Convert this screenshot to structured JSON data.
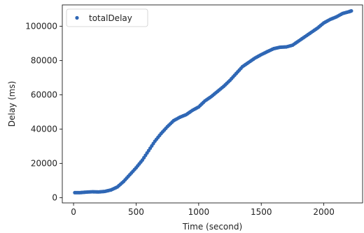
{
  "chart_data": {
    "type": "scatter",
    "title": "",
    "xlabel": "Time (second)",
    "ylabel": "Delay (ms)",
    "xlim": [
      -90,
      2310
    ],
    "ylim": [
      -3000,
      112500
    ],
    "xticks": [
      0,
      500,
      1000,
      1500,
      2000
    ],
    "yticks": [
      0,
      20000,
      40000,
      60000,
      80000,
      100000
    ],
    "grid": false,
    "legend_position": "top-left",
    "series": [
      {
        "name": "totalDelay",
        "color": "#2f67b5",
        "marker": "circle",
        "x": [
          10,
          50,
          100,
          150,
          200,
          250,
          300,
          350,
          400,
          450,
          500,
          550,
          600,
          650,
          700,
          750,
          800,
          850,
          900,
          950,
          1000,
          1050,
          1100,
          1150,
          1200,
          1250,
          1300,
          1350,
          1400,
          1450,
          1500,
          1550,
          1600,
          1650,
          1700,
          1750,
          1800,
          1850,
          1900,
          1950,
          2000,
          2050,
          2100,
          2150,
          2200,
          2220
        ],
        "y": [
          3000,
          3000,
          3300,
          3500,
          3400,
          3700,
          4600,
          6300,
          9500,
          13500,
          17500,
          22000,
          27500,
          33000,
          37500,
          41500,
          45000,
          47000,
          48500,
          51000,
          53000,
          56500,
          59000,
          62000,
          65000,
          68500,
          72500,
          76500,
          79000,
          81500,
          83500,
          85300,
          87000,
          87800,
          88000,
          89000,
          91500,
          94000,
          96500,
          99000,
          102000,
          104000,
          105500,
          107500,
          108500,
          109000
        ]
      }
    ]
  }
}
